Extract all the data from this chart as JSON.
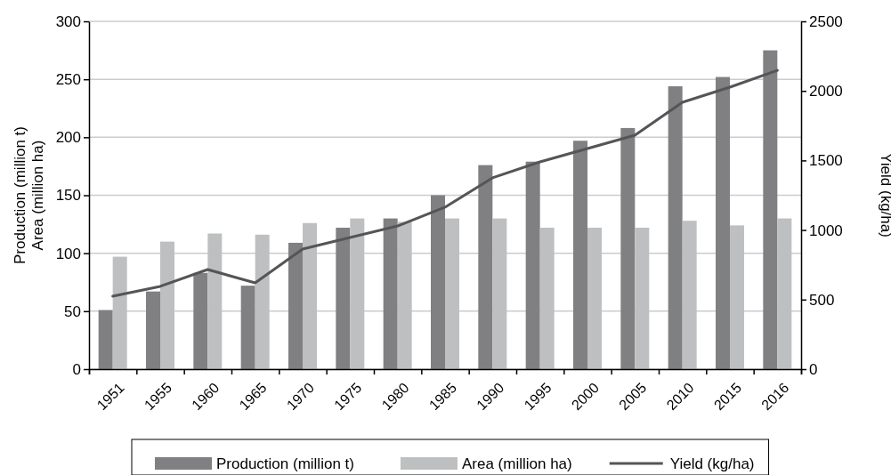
{
  "chart_data": {
    "type": "bar",
    "categories": [
      "1951",
      "1955",
      "1960",
      "1965",
      "1970",
      "1975",
      "1980",
      "1985",
      "1990",
      "1995",
      "2000",
      "2005",
      "2010",
      "2015",
      "2016"
    ],
    "ylabel": "Production (million t)\nArea (million ha)",
    "y2label": "Yield (kg/ha)",
    "ylim": [
      0,
      300
    ],
    "yticks": [
      0,
      50,
      100,
      150,
      200,
      250,
      300
    ],
    "y2lim": [
      0,
      2500
    ],
    "y2ticks": [
      0,
      500,
      1000,
      1500,
      2000,
      2500
    ],
    "grid": "y",
    "legend": "bottom",
    "series": [
      {
        "name": "Production (million t)",
        "color": "#808083",
        "values": [
          51,
          67,
          83,
          72,
          109,
          122,
          130,
          150,
          176,
          179,
          197,
          208,
          244,
          252,
          275
        ]
      },
      {
        "name": "Area (million ha)",
        "color": "#bebfc1",
        "values": [
          97,
          110,
          117,
          116,
          126,
          130,
          127,
          130,
          130,
          122,
          122,
          122,
          128,
          124,
          130
        ]
      },
      {
        "name": "Yield (kg/ha)",
        "type": "line",
        "axis": "y2",
        "color": "#555557",
        "values": [
          524,
          595,
          716,
          620,
          863,
          946,
          1029,
          1164,
          1375,
          1490,
          1586,
          1682,
          1918,
          2027,
          2148
        ]
      }
    ]
  }
}
